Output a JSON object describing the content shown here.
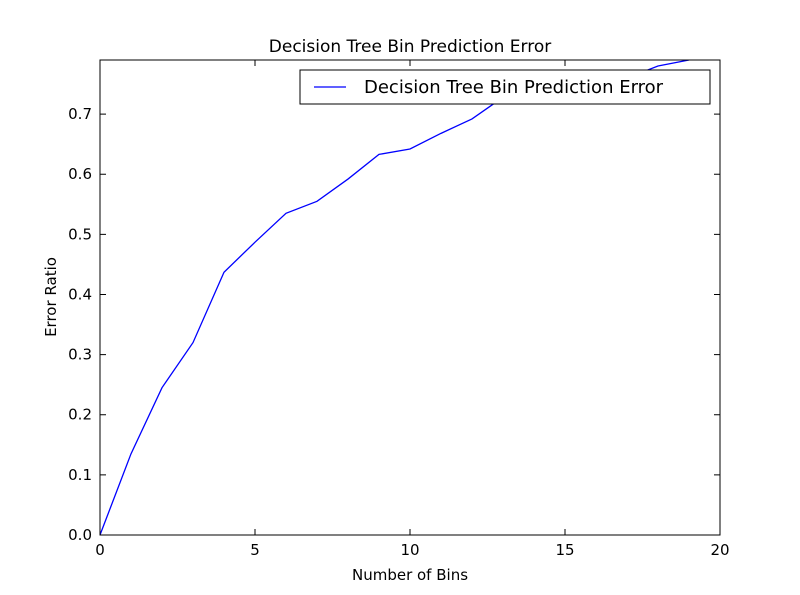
{
  "chart_data": {
    "type": "line",
    "title": "Decision Tree Bin Prediction Error",
    "xlabel": "Number of Bins",
    "ylabel": "Error Ratio",
    "xlim": [
      0,
      20
    ],
    "ylim": [
      0,
      0.79
    ],
    "xticks": [
      "0",
      "5",
      "10",
      "15",
      "20"
    ],
    "yticks": [
      "0.0",
      "0.1",
      "0.2",
      "0.3",
      "0.4",
      "0.5",
      "0.6",
      "0.7"
    ],
    "grid": false,
    "legend_position": "top-right",
    "series": [
      {
        "name": "Decision Tree Bin Prediction Error",
        "color": "#0000ff",
        "x": [
          0,
          1,
          2,
          3,
          4,
          5,
          6,
          7,
          8,
          9,
          10,
          11,
          12,
          13,
          14,
          15,
          16,
          17,
          18,
          19
        ],
        "y": [
          0.0,
          0.135,
          0.245,
          0.32,
          0.437,
          0.487,
          0.535,
          0.555,
          0.592,
          0.633,
          0.642,
          0.668,
          0.692,
          0.728,
          0.74,
          0.745,
          0.75,
          0.76,
          0.78,
          0.79
        ]
      }
    ]
  }
}
